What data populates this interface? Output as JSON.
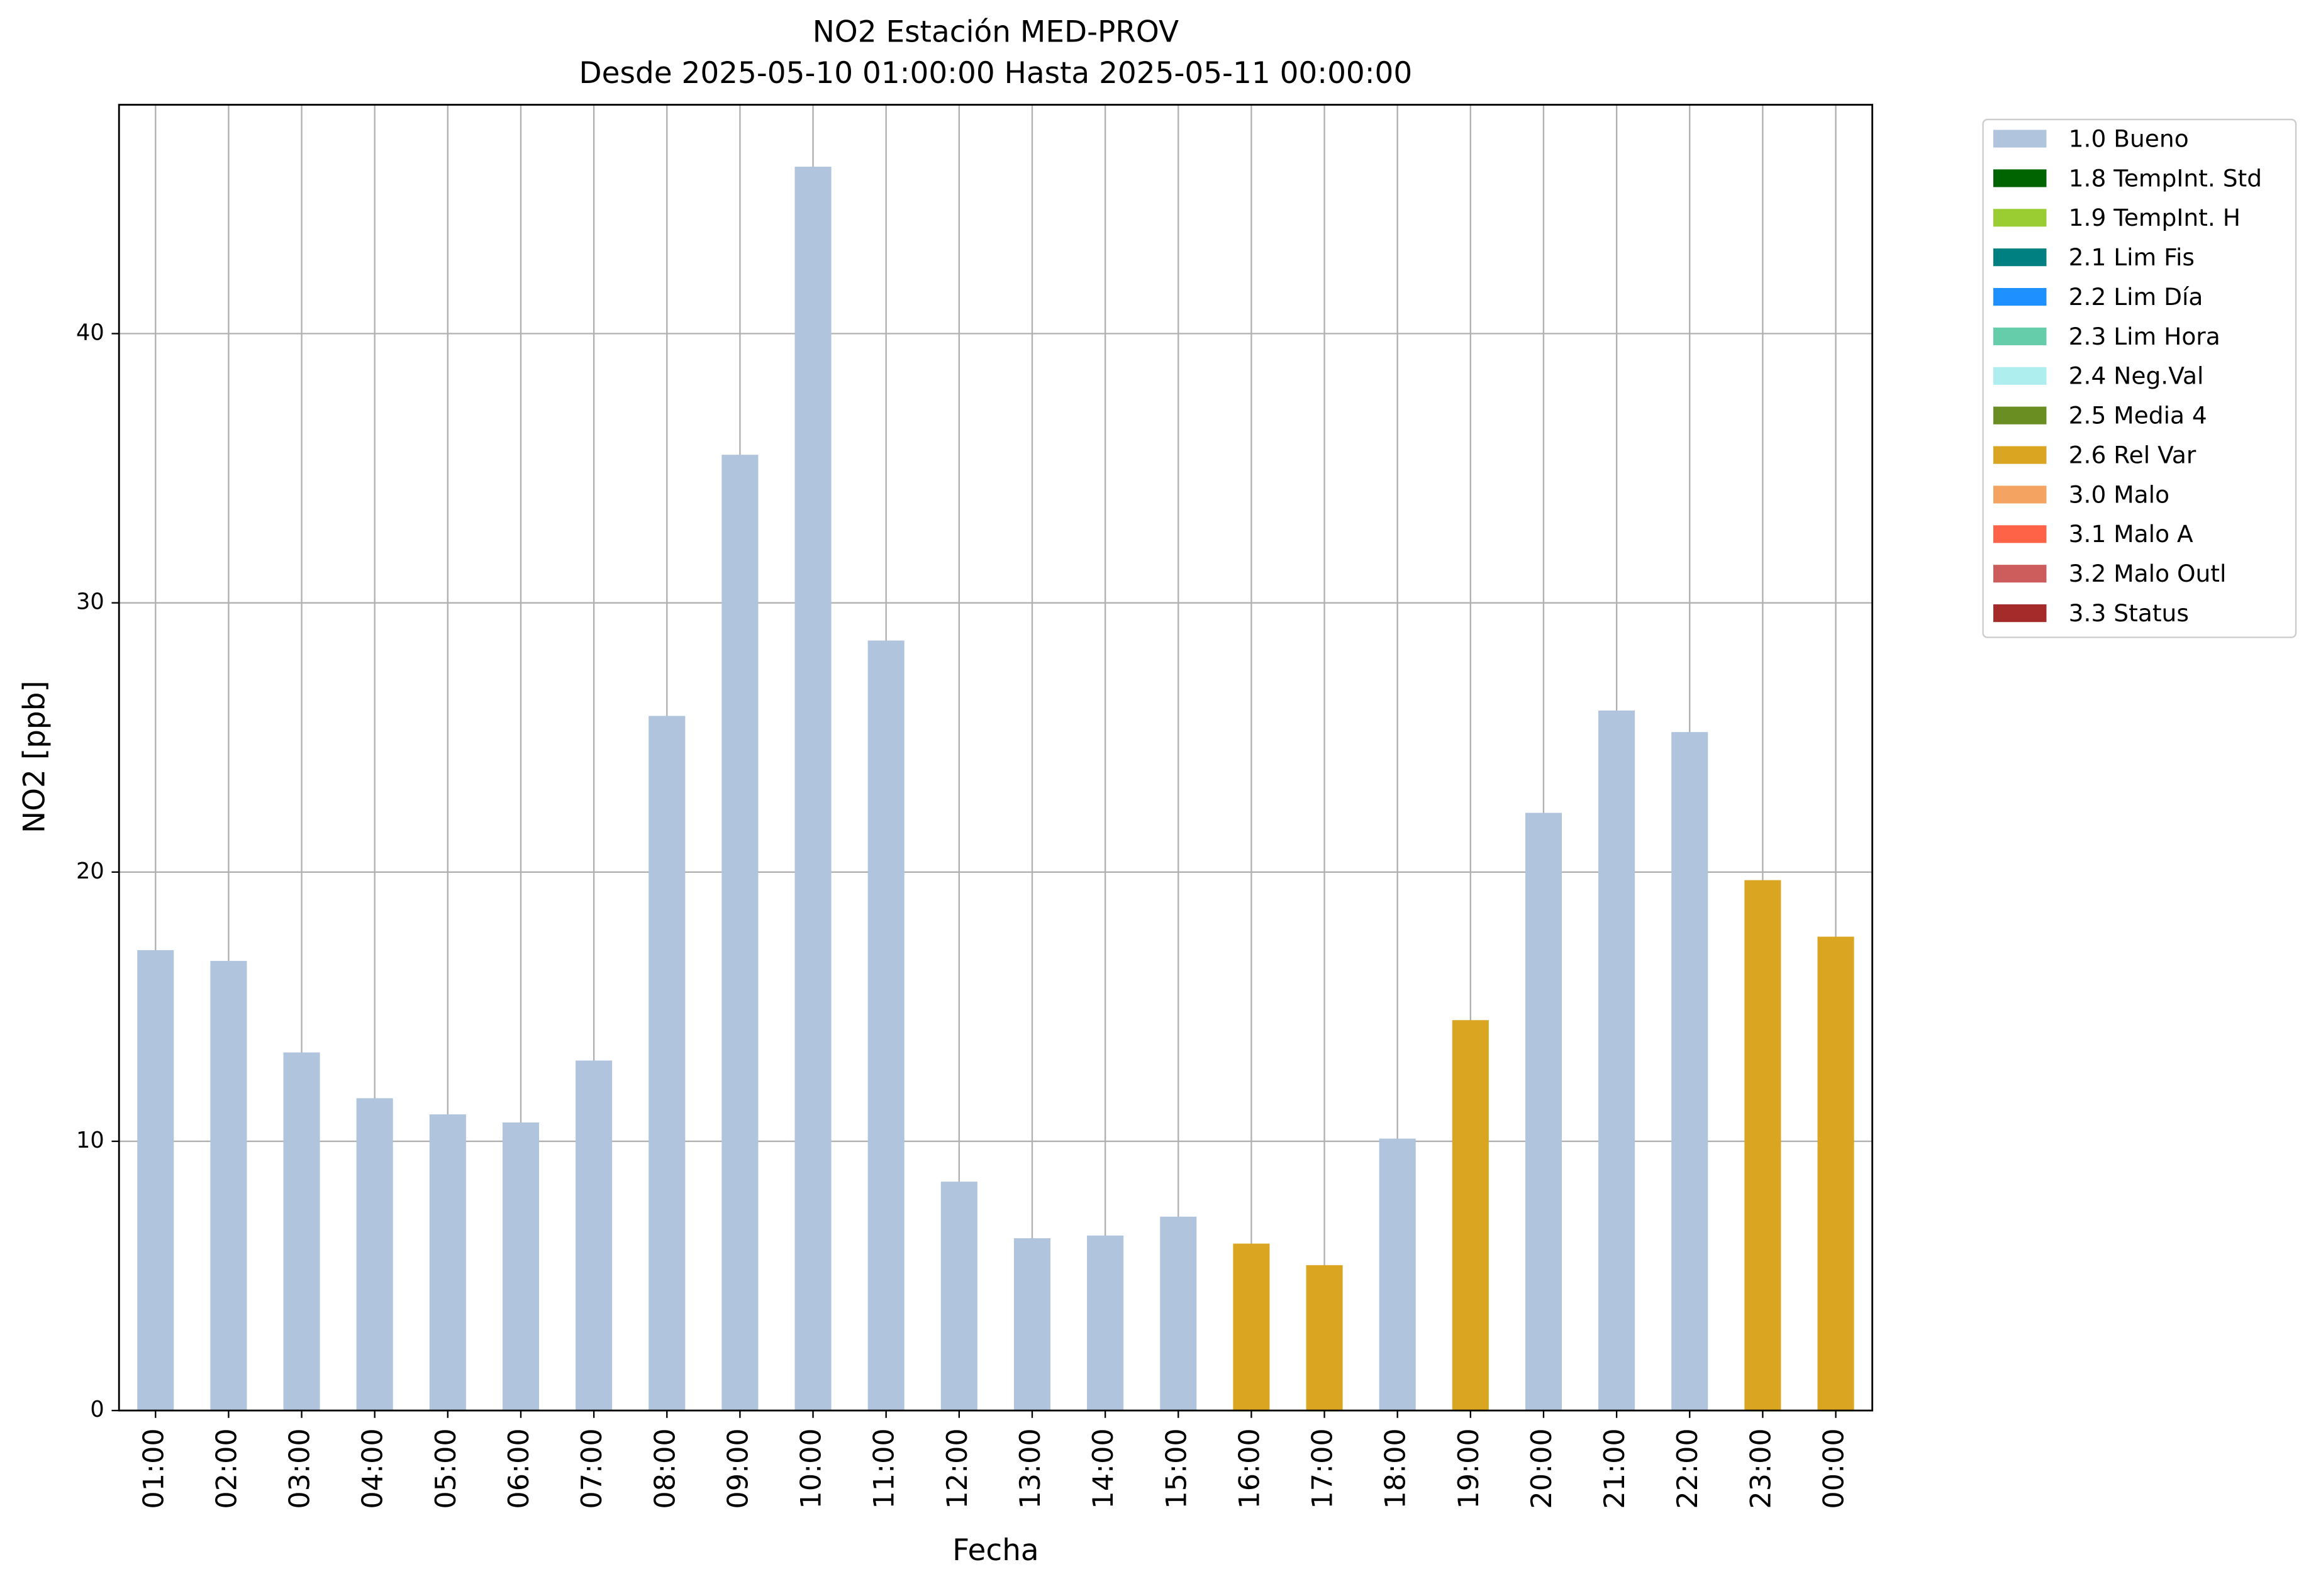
{
  "chart_data": {
    "type": "bar",
    "stacked": true,
    "title": "NO2 Estación MED-PROV",
    "subtitle": "Desde 2025-05-10 01:00:00 Hasta 2025-05-11 00:00:00",
    "x_label": "Fecha",
    "y_label": "NO2 [ppb]",
    "categories": [
      "01:00",
      "02:00",
      "03:00",
      "04:00",
      "05:00",
      "06:00",
      "07:00",
      "08:00",
      "09:00",
      "10:00",
      "11:00",
      "12:00",
      "13:00",
      "14:00",
      "15:00",
      "16:00",
      "17:00",
      "18:00",
      "19:00",
      "20:00",
      "21:00",
      "22:00",
      "23:00",
      "00:00"
    ],
    "series": [
      {
        "name": "1.0 Bueno",
        "color": "#b0c4de",
        "values": [
          17.1,
          16.7,
          13.3,
          11.6,
          11.0,
          10.7,
          13.0,
          25.8,
          35.5,
          46.2,
          28.6,
          8.5,
          6.4,
          6.5,
          7.2,
          null,
          null,
          10.1,
          null,
          22.2,
          26.0,
          25.2,
          null,
          null
        ]
      },
      {
        "name": "1.8 TempInt. Std",
        "color": "#006400",
        "values": [
          null,
          null,
          null,
          null,
          null,
          null,
          null,
          null,
          null,
          null,
          null,
          null,
          null,
          null,
          null,
          null,
          null,
          null,
          null,
          null,
          null,
          null,
          null,
          null
        ]
      },
      {
        "name": "1.9 TempInt. H",
        "color": "#9acd32",
        "values": [
          null,
          null,
          null,
          null,
          null,
          null,
          null,
          null,
          null,
          null,
          null,
          null,
          null,
          null,
          null,
          null,
          null,
          null,
          null,
          null,
          null,
          null,
          null,
          null
        ]
      },
      {
        "name": "2.1 Lim Fis",
        "color": "#008080",
        "values": [
          null,
          null,
          null,
          null,
          null,
          null,
          null,
          null,
          null,
          null,
          null,
          null,
          null,
          null,
          null,
          null,
          null,
          null,
          null,
          null,
          null,
          null,
          null,
          null
        ]
      },
      {
        "name": "2.2 Lim Día",
        "color": "#1e90ff",
        "values": [
          null,
          null,
          null,
          null,
          null,
          null,
          null,
          null,
          null,
          null,
          null,
          null,
          null,
          null,
          null,
          null,
          null,
          null,
          null,
          null,
          null,
          null,
          null,
          null
        ]
      },
      {
        "name": "2.3 Lim Hora",
        "color": "#66cdaa",
        "values": [
          null,
          null,
          null,
          null,
          null,
          null,
          null,
          null,
          null,
          null,
          null,
          null,
          null,
          null,
          null,
          null,
          null,
          null,
          null,
          null,
          null,
          null,
          null,
          null
        ]
      },
      {
        "name": "2.4 Neg.Val",
        "color": "#afeeee",
        "values": [
          null,
          null,
          null,
          null,
          null,
          null,
          null,
          null,
          null,
          null,
          null,
          null,
          null,
          null,
          null,
          null,
          null,
          null,
          null,
          null,
          null,
          null,
          null,
          null
        ]
      },
      {
        "name": "2.5 Media 4",
        "color": "#6b8e23",
        "values": [
          null,
          null,
          null,
          null,
          null,
          null,
          null,
          null,
          null,
          null,
          null,
          null,
          null,
          null,
          null,
          null,
          null,
          null,
          null,
          null,
          null,
          null,
          null,
          null
        ]
      },
      {
        "name": "2.6 Rel Var",
        "color": "#daa520",
        "values": [
          null,
          null,
          null,
          null,
          null,
          null,
          null,
          null,
          null,
          null,
          null,
          null,
          null,
          null,
          null,
          6.2,
          5.4,
          null,
          14.5,
          null,
          null,
          null,
          19.7,
          17.6
        ]
      },
      {
        "name": "3.0 Malo",
        "color": "#f4a460",
        "values": [
          null,
          null,
          null,
          null,
          null,
          null,
          null,
          null,
          null,
          null,
          null,
          null,
          null,
          null,
          null,
          null,
          null,
          null,
          null,
          null,
          null,
          null,
          null,
          null
        ]
      },
      {
        "name": "3.1 Malo A",
        "color": "#ff6347",
        "values": [
          null,
          null,
          null,
          null,
          null,
          null,
          null,
          null,
          null,
          null,
          null,
          null,
          null,
          null,
          null,
          null,
          null,
          null,
          null,
          null,
          null,
          null,
          null,
          null
        ]
      },
      {
        "name": "3.2 Malo Outl",
        "color": "#cd5c5c",
        "values": [
          null,
          null,
          null,
          null,
          null,
          null,
          null,
          null,
          null,
          null,
          null,
          null,
          null,
          null,
          null,
          null,
          null,
          null,
          null,
          null,
          null,
          null,
          null,
          null
        ]
      },
      {
        "name": "3.3 Status",
        "color": "#a52a2a",
        "values": [
          null,
          null,
          null,
          null,
          null,
          null,
          null,
          null,
          null,
          null,
          null,
          null,
          null,
          null,
          null,
          null,
          null,
          null,
          null,
          null,
          null,
          null,
          null,
          null
        ]
      }
    ],
    "ylim": [
      0,
      48.5
    ],
    "yticks": [
      0,
      10,
      20,
      30,
      40
    ],
    "grid": true,
    "legend": "outside-right"
  }
}
